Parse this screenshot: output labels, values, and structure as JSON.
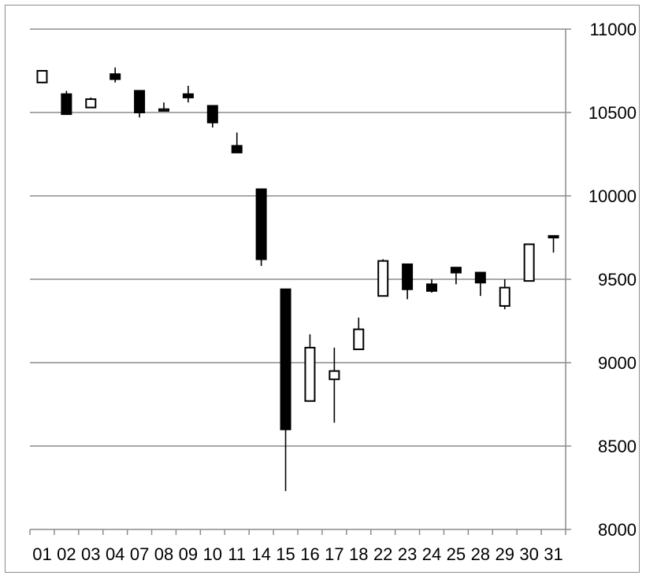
{
  "chart_data": {
    "type": "candlestick",
    "title": "",
    "xlabel": "",
    "ylabel": "",
    "ylim": [
      8000,
      11000
    ],
    "y_ticks": [
      8000,
      8500,
      9000,
      9500,
      10000,
      10500,
      11000
    ],
    "y_axis_side": "right",
    "grid": "horizontal",
    "legend": "none",
    "up_color": "#ffffff",
    "down_color": "#000000",
    "categories": [
      "01",
      "02",
      "03",
      "04",
      "07",
      "08",
      "09",
      "10",
      "11",
      "14",
      "15",
      "16",
      "17",
      "18",
      "22",
      "23",
      "24",
      "25",
      "28",
      "29",
      "30",
      "31"
    ],
    "candles": [
      {
        "date": "01",
        "open": 10680,
        "high": 10750,
        "low": 10680,
        "close": 10750
      },
      {
        "date": "02",
        "open": 10610,
        "high": 10630,
        "low": 10490,
        "close": 10490
      },
      {
        "date": "03",
        "open": 10530,
        "high": 10590,
        "low": 10530,
        "close": 10580
      },
      {
        "date": "04",
        "open": 10730,
        "high": 10770,
        "low": 10680,
        "close": 10700
      },
      {
        "date": "07",
        "open": 10630,
        "high": 10630,
        "low": 10470,
        "close": 10500
      },
      {
        "date": "08",
        "open": 10510,
        "high": 10560,
        "low": 10510,
        "close": 10520
      },
      {
        "date": "09",
        "open": 10610,
        "high": 10660,
        "low": 10560,
        "close": 10590
      },
      {
        "date": "10",
        "open": 10540,
        "high": 10540,
        "low": 10410,
        "close": 10440
      },
      {
        "date": "11",
        "open": 10300,
        "high": 10380,
        "low": 10260,
        "close": 10260
      },
      {
        "date": "14",
        "open": 10040,
        "high": 10040,
        "low": 9580,
        "close": 9620
      },
      {
        "date": "15",
        "open": 9440,
        "high": 9440,
        "low": 8230,
        "close": 8600
      },
      {
        "date": "16",
        "open": 8770,
        "high": 9170,
        "low": 8770,
        "close": 9090
      },
      {
        "date": "17",
        "open": 8900,
        "high": 9090,
        "low": 8640,
        "close": 8950
      },
      {
        "date": "18",
        "open": 9080,
        "high": 9270,
        "low": 9080,
        "close": 9200
      },
      {
        "date": "22",
        "open": 9400,
        "high": 9620,
        "low": 9400,
        "close": 9610
      },
      {
        "date": "23",
        "open": 9590,
        "high": 9590,
        "low": 9380,
        "close": 9440
      },
      {
        "date": "24",
        "open": 9470,
        "high": 9500,
        "low": 9420,
        "close": 9430
      },
      {
        "date": "25",
        "open": 9570,
        "high": 9570,
        "low": 9470,
        "close": 9540
      },
      {
        "date": "28",
        "open": 9540,
        "high": 9540,
        "low": 9400,
        "close": 9480
      },
      {
        "date": "29",
        "open": 9340,
        "high": 9500,
        "low": 9320,
        "close": 9450
      },
      {
        "date": "30",
        "open": 9490,
        "high": 9710,
        "low": 9490,
        "close": 9710
      },
      {
        "date": "31",
        "open": 9760,
        "high": 9760,
        "low": 9660,
        "close": 9750
      }
    ]
  }
}
